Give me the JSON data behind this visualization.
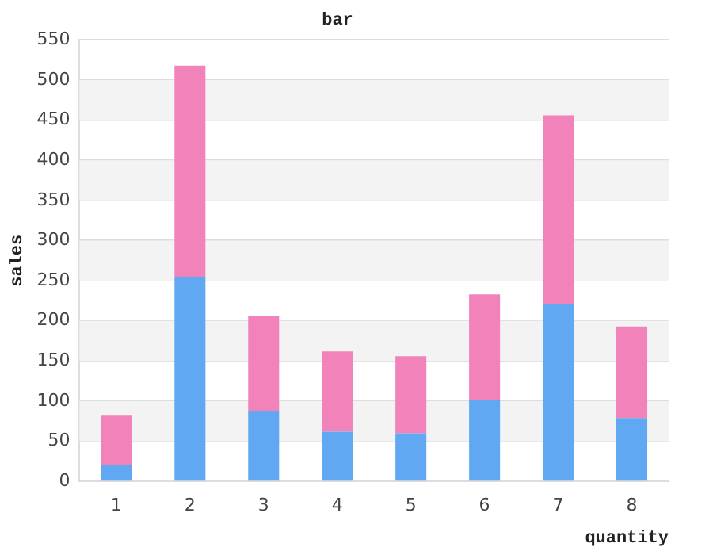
{
  "chart_data": {
    "type": "bar",
    "title": "bar",
    "xlabel": "quantity",
    "ylabel": "sales",
    "stacked": true,
    "categories": [
      "1",
      "2",
      "3",
      "4",
      "5",
      "6",
      "7",
      "8"
    ],
    "series": [
      {
        "color": "#60a8f2",
        "values": [
          20,
          255,
          87,
          62,
          60,
          101,
          221,
          79
        ]
      },
      {
        "color": "#f282ba",
        "values": [
          62,
          263,
          119,
          100,
          96,
          132,
          235,
          114
        ]
      }
    ],
    "ylim": [
      0,
      550
    ],
    "yticks": [
      0,
      50,
      100,
      150,
      200,
      250,
      300,
      350,
      400,
      450,
      500,
      550
    ],
    "grid": "y",
    "legend": false
  }
}
